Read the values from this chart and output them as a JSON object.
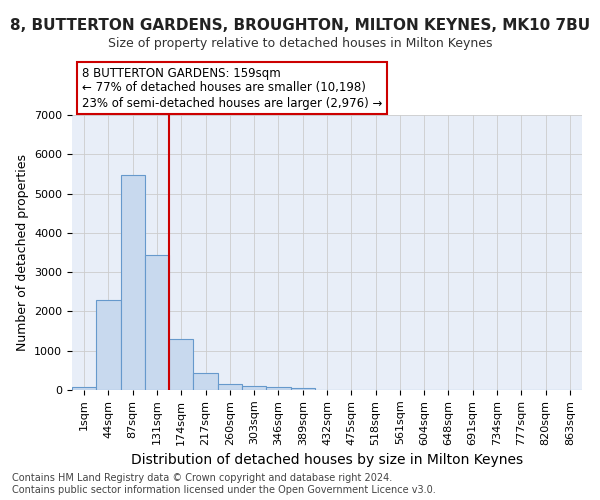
{
  "title": "8, BUTTERTON GARDENS, BROUGHTON, MILTON KEYNES, MK10 7BU",
  "subtitle": "Size of property relative to detached houses in Milton Keynes",
  "xlabel": "Distribution of detached houses by size in Milton Keynes",
  "ylabel": "Number of detached properties",
  "footer_line1": "Contains HM Land Registry data © Crown copyright and database right 2024.",
  "footer_line2": "Contains public sector information licensed under the Open Government Licence v3.0.",
  "bar_labels": [
    "1sqm",
    "44sqm",
    "87sqm",
    "131sqm",
    "174sqm",
    "217sqm",
    "260sqm",
    "303sqm",
    "346sqm",
    "389sqm",
    "432sqm",
    "475sqm",
    "518sqm",
    "561sqm",
    "604sqm",
    "648sqm",
    "691sqm",
    "734sqm",
    "777sqm",
    "820sqm",
    "863sqm"
  ],
  "bar_values": [
    75,
    2280,
    5470,
    3430,
    1310,
    430,
    160,
    100,
    65,
    40,
    0,
    0,
    0,
    0,
    0,
    0,
    0,
    0,
    0,
    0,
    0
  ],
  "bar_color": "#c8d9ee",
  "bar_edge_color": "#6699cc",
  "grid_color": "#cccccc",
  "background_color": "#e8eef8",
  "annotation_text": "8 BUTTERTON GARDENS: 159sqm\n← 77% of detached houses are smaller (10,198)\n23% of semi-detached houses are larger (2,976) →",
  "annotation_box_facecolor": "#ffffff",
  "annotation_box_edgecolor": "#cc0000",
  "vline_x": 3.5,
  "vline_color": "#cc0000",
  "ylim": [
    0,
    7000
  ],
  "yticks": [
    0,
    1000,
    2000,
    3000,
    4000,
    5000,
    6000,
    7000
  ],
  "title_fontsize": 11,
  "subtitle_fontsize": 9,
  "ylabel_fontsize": 9,
  "xlabel_fontsize": 10,
  "tick_fontsize": 8,
  "footer_fontsize": 7
}
